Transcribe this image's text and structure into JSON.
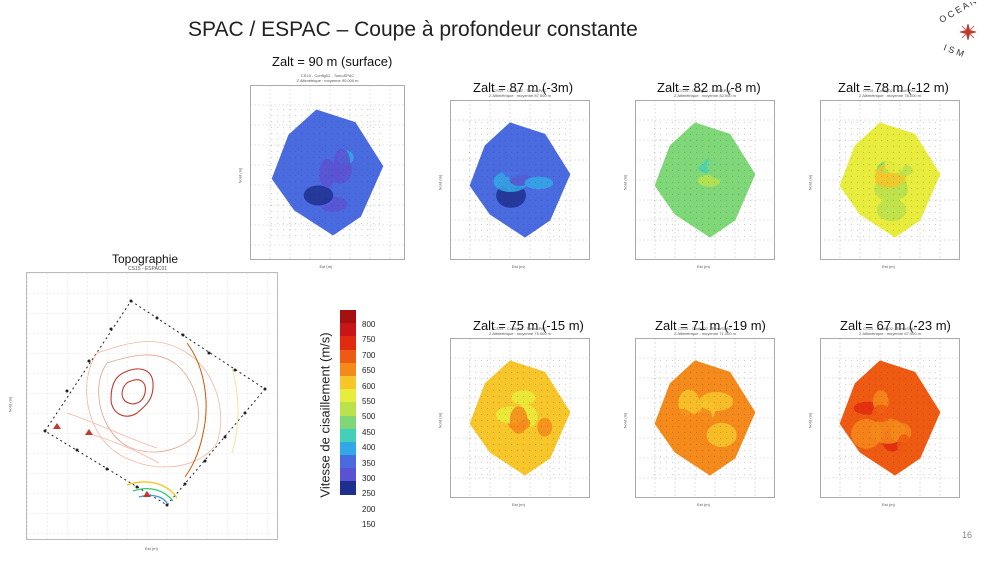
{
  "slide": {
    "title": "SPAC /  ESPAC – Coupe à profondeur constante",
    "page_number": "16",
    "logo_text": "OCEANISM"
  },
  "maps": [
    {
      "label": "Zalt = 90 m (surface)",
      "caption1": "CS15 - Config02 - TomoSPAC",
      "caption2": "Z Altimétrique : moyenne 90.000 m",
      "xaxis": "Est (m)",
      "yaxis": "Nord (m)",
      "mean_vs": 250
    },
    {
      "label": "Zalt = 87 m (-3m)",
      "caption1": "CS15 - Config02 - TomoSPAC",
      "caption2": "Z Altimétrique : moyenne 87.000 m",
      "xaxis": "Est (m)",
      "yaxis": "Nord (m)",
      "mean_vs": 260
    },
    {
      "label": "Zalt = 82 m (-8 m)",
      "caption1": "CS15 - Config02 - TomoSPAC",
      "caption2": "Z Altimétrique : moyenne 82.000 m",
      "xaxis": "Est (m)",
      "yaxis": "Nord (m)",
      "mean_vs": 400
    },
    {
      "label": "Zalt = 78 m (-12 m)",
      "caption1": "CS15 - Config02 - TomoSPAC",
      "caption2": "Z Altimétrique : moyenne 78.000 m",
      "xaxis": "Est (m)",
      "yaxis": "Nord (m)",
      "mean_vs": 510
    },
    {
      "label": "Zalt = 75 m (-15 m)",
      "caption1": "CS15 - Config02 - TomoSPAC",
      "caption2": "Z Altimétrique : moyenne 75.000 m",
      "xaxis": "Est (m)",
      "yaxis": "Nord (m)",
      "mean_vs": 560
    },
    {
      "label": "Zalt = 71 m (-19 m)",
      "caption1": "CS15 - Config02 - TomoSPAC",
      "caption2": "Z Altimétrique : moyenne 71.000 m",
      "xaxis": "Est (m)",
      "yaxis": "Nord (m)",
      "mean_vs": 610
    },
    {
      "label": "Zalt = 67 m (-23 m)",
      "caption1": "CS15 - Config02 - TomoSPAC",
      "caption2": "Z Altimétrique : moyenne 67.000 m",
      "xaxis": "Est (m)",
      "yaxis": "Nord (m)",
      "mean_vs": 690
    }
  ],
  "topography": {
    "title": "Topographie",
    "subtitle": "CS15 - ESPAC01",
    "xaxis": "Est (m)",
    "yaxis": "Nord (m)"
  },
  "colorscale": {
    "title": "Vitesse de cisaillement (m/s)",
    "ticks": [
      "800",
      "750",
      "700",
      "650",
      "600",
      "550",
      "500",
      "450",
      "400",
      "350",
      "300",
      "250",
      "200",
      "150"
    ],
    "colors": [
      "#a40f0f",
      "#c81616",
      "#e12a10",
      "#ef5a12",
      "#f48a1b",
      "#f6c62a",
      "#e8ec3c",
      "#b9e24d",
      "#7fd778",
      "#43cfb8",
      "#33a8e6",
      "#4a6be0",
      "#5a52d1",
      "#1f2f8f"
    ]
  }
}
